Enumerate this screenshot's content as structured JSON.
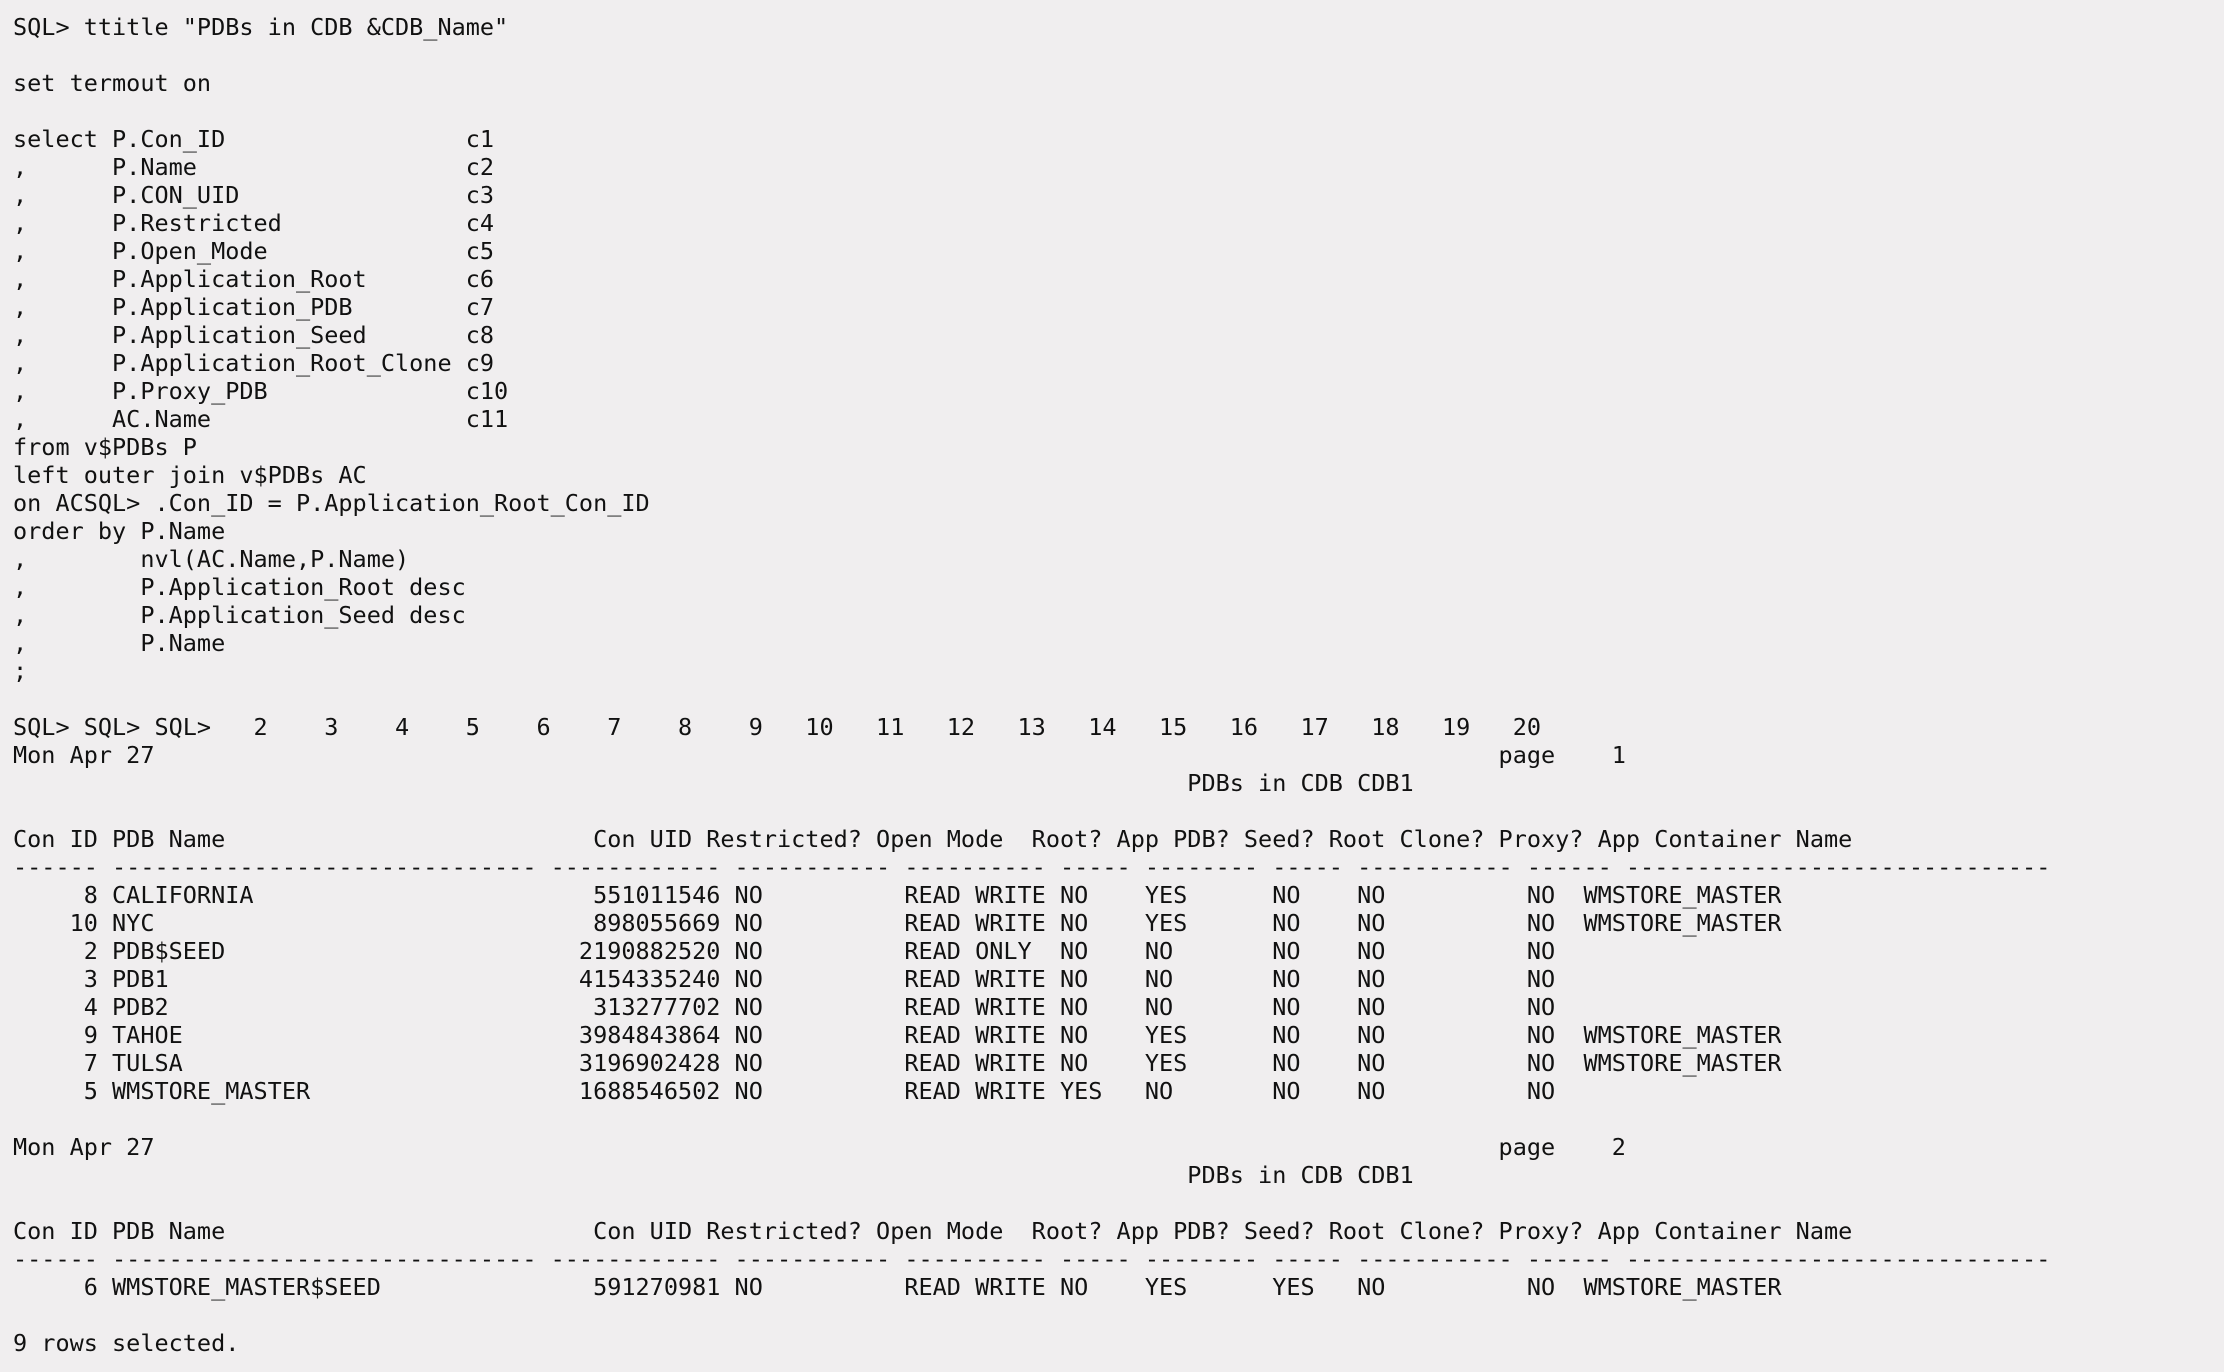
{
  "terminal": {
    "background_color": "#f0eeef",
    "text_color": "#111111",
    "lines": [
      "SQL> ttitle \"PDBs in CDB &CDB_Name\"",
      "",
      "set termout on",
      "",
      "select P.Con_ID                 c1",
      ",      P.Name                   c2",
      ",      P.CON_UID                c3",
      ",      P.Restricted             c4",
      ",      P.Open_Mode              c5",
      ",      P.Application_Root       c6",
      ",      P.Application_PDB        c7",
      ",      P.Application_Seed       c8",
      ",      P.Application_Root_Clone c9",
      ",      P.Proxy_PDB              c10",
      ",      AC.Name                  c11",
      "from v$PDBs P",
      "left outer join v$PDBs AC",
      "on ACSQL> .Con_ID = P.Application_Root_Con_ID",
      "order by P.Name",
      ",        nvl(AC.Name,P.Name)",
      ",        P.Application_Root desc",
      ",        P.Application_Seed desc",
      ",        P.Name",
      ";",
      "",
      "SQL> SQL> SQL>   2    3    4    5    6    7    8    9   10   11   12   13   14   15   16   17   18   19   20",
      "Mon Apr 27                                                                                               page    1",
      "                                                                                   PDBs in CDB CDB1",
      "",
      "Con ID PDB Name                          Con UID Restricted? Open Mode  Root? App PDB? Seed? Root Clone? Proxy? App Container Name",
      "------ ------------------------------ ------------ ----------- ---------- ----- -------- ----- ----------- ------ ------------------------------",
      "     8 CALIFORNIA                        551011546 NO          READ WRITE NO    YES      NO    NO          NO  WMSTORE_MASTER",
      "    10 NYC                               898055669 NO          READ WRITE NO    YES      NO    NO          NO  WMSTORE_MASTER",
      "     2 PDB$SEED                         2190882520 NO          READ ONLY  NO    NO       NO    NO          NO",
      "     3 PDB1                             4154335240 NO          READ WRITE NO    NO       NO    NO          NO",
      "     4 PDB2                              313277702 NO          READ WRITE NO    NO       NO    NO          NO",
      "     9 TAHOE                            3984843864 NO          READ WRITE NO    YES      NO    NO          NO  WMSTORE_MASTER",
      "     7 TULSA                            3196902428 NO          READ WRITE NO    YES      NO    NO          NO  WMSTORE_MASTER",
      "     5 WMSTORE_MASTER                   1688546502 NO          READ WRITE YES   NO       NO    NO          NO",
      "",
      "Mon Apr 27                                                                                               page    2",
      "                                                                                   PDBs in CDB CDB1",
      "",
      "Con ID PDB Name                          Con UID Restricted? Open Mode  Root? App PDB? Seed? Root Clone? Proxy? App Container Name",
      "------ ------------------------------ ------------ ----------- ---------- ----- -------- ----- ----------- ------ ------------------------------",
      "     6 WMSTORE_MASTER$SEED               591270981 NO          READ WRITE NO    YES      YES   NO          NO  WMSTORE_MASTER",
      "",
      "9 rows selected."
    ]
  }
}
